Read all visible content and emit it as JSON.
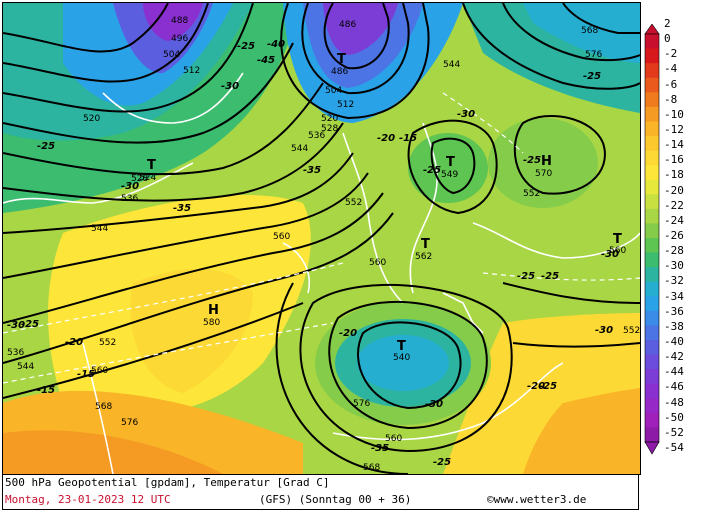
{
  "footer": {
    "title": "500 hPa Geopotential [gpdam], Temperatur [Grad C]",
    "date": "Montag, 23-01-2023  12 UTC",
    "run": "(GFS)  (Sonntag 00 + 36)",
    "brand": "©www.wetter3.de"
  },
  "legend": {
    "labels": [
      "2",
      "0",
      "-2",
      "-4",
      "-6",
      "-8",
      "-10",
      "-12",
      "-14",
      "-16",
      "-18",
      "-20",
      "-22",
      "-24",
      "-26",
      "-28",
      "-30",
      "-32",
      "-34",
      "-36",
      "-38",
      "-40",
      "-42",
      "-44",
      "-46",
      "-48",
      "-50",
      "-52",
      "-54"
    ],
    "colors": [
      "#c8102e",
      "#d7191c",
      "#e23a1a",
      "#ea5a1c",
      "#f07a1e",
      "#f59a22",
      "#f9b428",
      "#fbc82e",
      "#fcd934",
      "#fde53a",
      "#e6e83c",
      "#c8e040",
      "#a8d644",
      "#84cc4a",
      "#5ec452",
      "#3cbc6e",
      "#2cb4a0",
      "#26aed0",
      "#2aa2e8",
      "#3a8ce8",
      "#4c74e4",
      "#5c5ee0",
      "#6c4cdc",
      "#7c3cd6",
      "#8a30d0",
      "#9628c8",
      "#a020bc",
      "#8e1aa8"
    ]
  },
  "map": {
    "highs": [
      {
        "letter": "H",
        "value": "580"
      },
      {
        "letter": "H",
        "value": "570"
      }
    ],
    "lows": [
      {
        "letter": "T",
        "value": "524"
      },
      {
        "letter": "T",
        "value": "486"
      },
      {
        "letter": "T",
        "value": "549"
      },
      {
        "letter": "T",
        "value": "562"
      },
      {
        "letter": "T",
        "value": "540"
      },
      {
        "letter": "T",
        "value": "560"
      }
    ],
    "contour_labels": [
      "488",
      "496",
      "504",
      "512",
      "520",
      "528",
      "536",
      "544",
      "552",
      "560",
      "568",
      "576",
      "486",
      "504",
      "512",
      "520",
      "528",
      "536",
      "544",
      "552",
      "560",
      "568",
      "576",
      "560",
      "544",
      "552",
      "560",
      "568",
      "576",
      "536",
      "544",
      "552"
    ],
    "temp_labels": [
      "-25",
      "-30",
      "-35",
      "-40",
      "-45",
      "-30",
      "-35",
      "-30",
      "-25",
      "-25",
      "-25",
      "-30",
      "-25",
      "-20",
      "-15",
      "-15",
      "-20",
      "-25",
      "-30",
      "-35",
      "-30",
      "-25",
      "-20",
      "-20",
      "-15",
      "-25",
      "-25",
      "-25",
      "-30"
    ]
  }
}
